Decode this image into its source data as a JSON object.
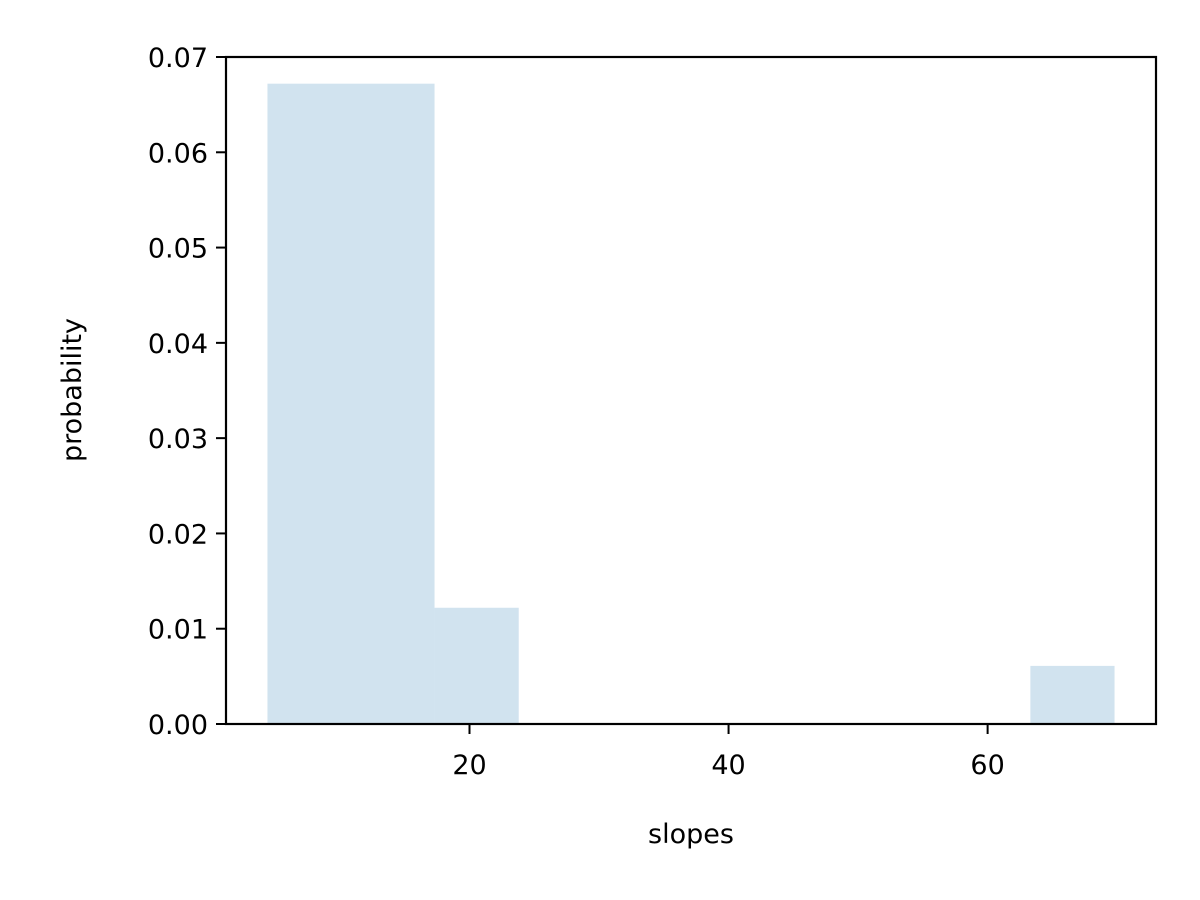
{
  "chart_data": {
    "type": "bar",
    "subtype": "histogram",
    "xlabel": "slopes",
    "ylabel": "probability",
    "xlim": [
      1.2,
      73.0
    ],
    "ylim": [
      0,
      0.07
    ],
    "xticks": [
      20,
      40,
      60
    ],
    "xtick_labels": [
      "20",
      "40",
      "60"
    ],
    "yticks": [
      0,
      0.01,
      0.02,
      0.03,
      0.04,
      0.05,
      0.06,
      0.07
    ],
    "ytick_labels": [
      "0.00",
      "0.01",
      "0.02",
      "0.03",
      "0.04",
      "0.05",
      "0.06",
      "0.07"
    ],
    "bins": [
      {
        "x0": 4.4,
        "x1": 17.3,
        "value": 0.0672
      },
      {
        "x0": 17.3,
        "x1": 23.8,
        "value": 0.0122
      },
      {
        "x0": 63.3,
        "x1": 69.8,
        "value": 0.0061
      }
    ],
    "bar_color": "#d1e3ef",
    "grid": false
  }
}
